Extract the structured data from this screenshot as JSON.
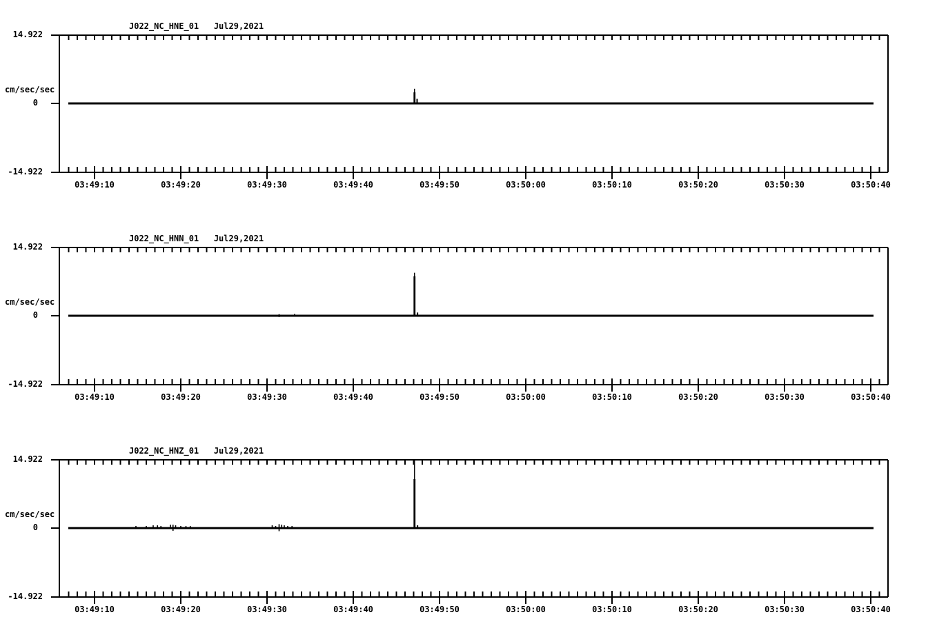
{
  "figure": {
    "background": "#ffffff",
    "ink": "#000000",
    "kind": "strong-motion seismogram, 3 components"
  },
  "chart_data": [
    {
      "type": "line",
      "station": "J022_NC_HNE_01",
      "date": "Jul29,2021",
      "title": "J022_NC_HNE_01   Jul29,2021",
      "ylabel": "cm/sec/sec",
      "y_tick_labels": {
        "max": "14.922",
        "zero": "0",
        "min": "-14.922"
      },
      "ylim": [
        -14.922,
        14.922
      ],
      "xlim": [
        "03:49:06",
        "03:50:42"
      ],
      "x_tick_labels": [
        "03:49:10",
        "03:49:20",
        "03:49:30",
        "03:49:40",
        "03:49:50",
        "03:50:00",
        "03:50:10",
        "03:50:20",
        "03:50:30",
        "03:50:40"
      ],
      "x_major_interval_sec": 10,
      "x_minor_interval_sec": 1,
      "grid": false,
      "trace": {
        "baseline_value": 0,
        "start": "03:49:07",
        "end": "03:50:40.2",
        "spike": {
          "time": "03:49:47.1",
          "peak": 3.2,
          "clipped": false
        },
        "blips": [
          {
            "time": "03:49:47.4",
            "amp": 1.0
          }
        ],
        "noise": []
      }
    },
    {
      "type": "line",
      "station": "J022_NC_HNN_01",
      "date": "Jul29,2021",
      "title": "J022_NC_HNN_01   Jul29,2021",
      "ylabel": "cm/sec/sec",
      "y_tick_labels": {
        "max": "14.922",
        "zero": "0",
        "min": "-14.922"
      },
      "ylim": [
        -14.922,
        14.922
      ],
      "xlim": [
        "03:49:06",
        "03:50:42"
      ],
      "x_tick_labels": [
        "03:49:10",
        "03:49:20",
        "03:49:30",
        "03:49:40",
        "03:49:50",
        "03:50:00",
        "03:50:10",
        "03:50:20",
        "03:50:30",
        "03:50:40"
      ],
      "x_major_interval_sec": 10,
      "x_minor_interval_sec": 1,
      "grid": false,
      "trace": {
        "baseline_value": 0,
        "start": "03:49:07",
        "end": "03:50:40.2",
        "spike": {
          "time": "03:49:47.1",
          "peak": 9.4,
          "clipped": false
        },
        "blips": [
          {
            "time": "03:49:47.45",
            "amp": 0.7
          }
        ],
        "noise": [
          {
            "time": "03:49:31.4",
            "amp": 0.35,
            "cross": true
          },
          {
            "time": "03:49:33.2",
            "amp": 0.25
          }
        ]
      }
    },
    {
      "type": "line",
      "station": "J022_NC_HNZ_01",
      "date": "Jul29,2021",
      "title": "J022_NC_HNZ_01   Jul29,2021",
      "ylabel": "cm/sec/sec",
      "y_tick_labels": {
        "max": "14.922",
        "zero": "0",
        "min": "-14.922"
      },
      "ylim": [
        -14.922,
        14.922
      ],
      "xlim": [
        "03:49:06",
        "03:50:42"
      ],
      "x_tick_labels": [
        "03:49:10",
        "03:49:20",
        "03:49:30",
        "03:49:40",
        "03:49:50",
        "03:50:00",
        "03:50:10",
        "03:50:20",
        "03:50:30",
        "03:50:40"
      ],
      "x_major_interval_sec": 10,
      "x_minor_interval_sec": 1,
      "grid": false,
      "trace": {
        "baseline_value": 0,
        "start": "03:49:07",
        "end": "03:50:40.2",
        "spike": {
          "time": "03:49:47.1",
          "peak": 14.922,
          "clipped": true
        },
        "blips": [
          {
            "time": "03:49:47.45",
            "amp": 0.6
          }
        ],
        "noise": [
          {
            "time": "03:49:14.8",
            "amp": 0.3
          },
          {
            "time": "03:49:16.0",
            "amp": 0.3
          },
          {
            "time": "03:49:16.8",
            "amp": 0.45
          },
          {
            "time": "03:49:17.3",
            "amp": 0.45
          },
          {
            "time": "03:49:17.7",
            "amp": 0.3
          },
          {
            "time": "03:49:18.8",
            "amp": 0.6
          },
          {
            "time": "03:49:19.1",
            "amp": 0.75,
            "cross": true
          },
          {
            "time": "03:49:19.4",
            "amp": 0.45
          },
          {
            "time": "03:49:20.0",
            "amp": 0.3
          },
          {
            "time": "03:49:20.6",
            "amp": 0.3
          },
          {
            "time": "03:49:21.1",
            "amp": 0.3
          },
          {
            "time": "03:49:30.6",
            "amp": 0.45
          },
          {
            "time": "03:49:31.0",
            "amp": 0.3
          },
          {
            "time": "03:49:31.4",
            "amp": 0.85,
            "cross": true
          },
          {
            "time": "03:49:31.7",
            "amp": 0.6
          },
          {
            "time": "03:49:32.0",
            "amp": 0.45
          },
          {
            "time": "03:49:32.4",
            "amp": 0.3
          },
          {
            "time": "03:49:32.9",
            "amp": 0.3
          }
        ]
      }
    }
  ]
}
